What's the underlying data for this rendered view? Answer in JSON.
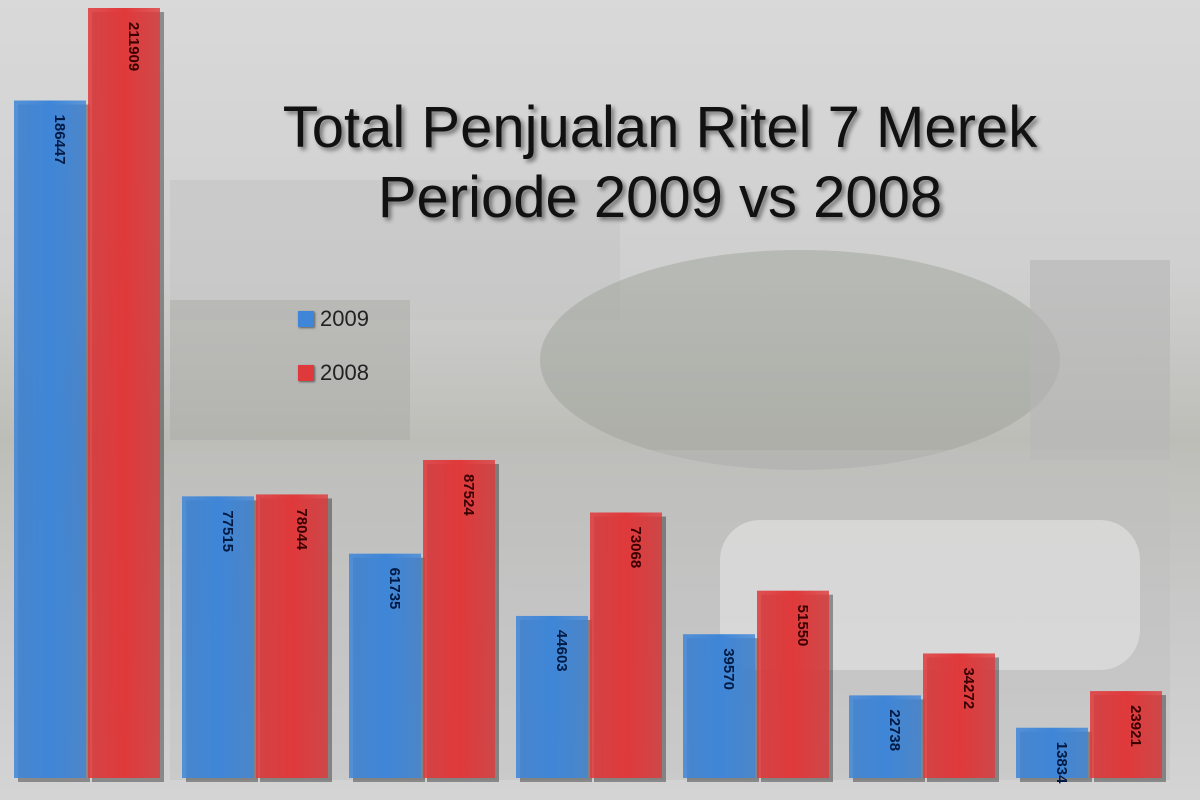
{
  "chart_data": {
    "type": "bar",
    "title": "Total Penjualan Ritel 7 Merek",
    "subtitle": "Periode 2009 vs 2008",
    "categories": [
      "",
      "",
      "",
      "",
      "",
      "",
      ""
    ],
    "series": [
      {
        "name": "2009",
        "color": "#3f86d8",
        "values": [
          186447,
          77515,
          61735,
          44603,
          39570,
          22738,
          13834
        ]
      },
      {
        "name": "2008",
        "color": "#e0393b",
        "values": [
          211909,
          78044,
          87524,
          73068,
          51550,
          34272,
          23921
        ]
      }
    ],
    "ylim": [
      0,
      215000
    ],
    "grid": false,
    "legend": "center-left"
  }
}
